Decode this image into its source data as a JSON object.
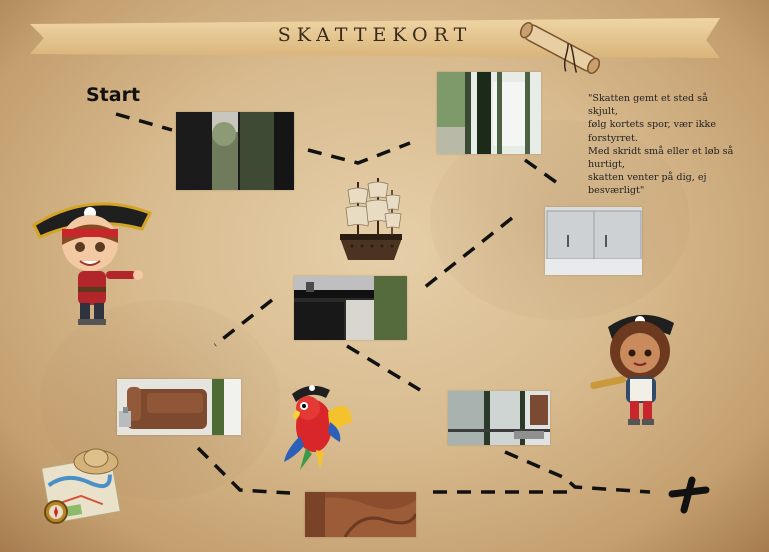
{
  "title": "SKATTEKORT",
  "start_label": "Start",
  "riddle_lines": [
    "\"Skatten gemt et sted så skjult,",
    "følg kortets spor, vær ikke",
    "forstyrret.",
    "Med skridt små eller et løb så",
    "hurtigt,",
    "skatten venter på dig, ej",
    "besværligt\""
  ],
  "colors": {
    "parchment": "#dcc096",
    "path": "#111111",
    "banner": "#e3c38f"
  },
  "icons": {
    "scroll": "rolled-scroll-icon",
    "ship": "pirate-ship-icon",
    "parrot": "parrot-icon",
    "treasure": "x-mark-icon",
    "map": "map-and-hat-icon"
  }
}
